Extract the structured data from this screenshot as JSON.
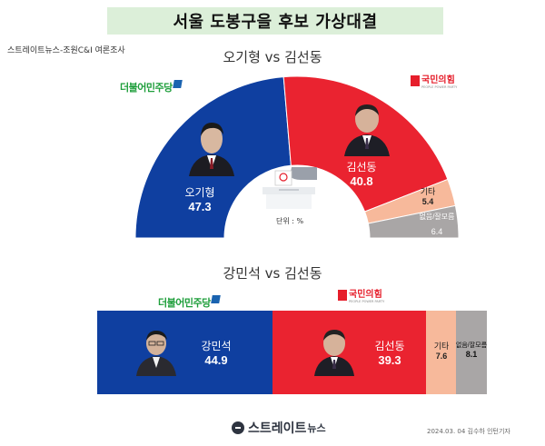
{
  "headline": "서울 도봉구을 후보 가상대결",
  "source": "스트레이트뉴스-조원C&I 여론조사",
  "party_labels": {
    "dem": "더불어민주당",
    "ppp": "국민의힘",
    "ppp_sub": "PEOPLE POWER PARTY"
  },
  "unit": "단위 : %",
  "footer": {
    "logo_main": "스트레이트",
    "logo_sub": "뉴스",
    "credit": "2024.03. 04 김수하 인턴기자"
  },
  "colors": {
    "dem": "#0f3fa0",
    "ppp": "#ea2330",
    "other": "#f7b99b",
    "none": "#a9a6a6",
    "banner": "#dcefd9"
  },
  "chart_data": [
    {
      "type": "pie",
      "title": "오기형 vs 김선동",
      "categories": [
        "오기형",
        "김선동",
        "기타",
        "없음/잘모름"
      ],
      "values": [
        47.3,
        40.8,
        5.4,
        6.4
      ],
      "labels": [
        "47.3",
        "40.8",
        "5.4",
        "6.4"
      ]
    },
    {
      "type": "bar",
      "title": "강민석 vs 김선동",
      "categories": [
        "강민석",
        "김선동",
        "기타",
        "없음/잘모름"
      ],
      "values": [
        44.9,
        39.3,
        7.6,
        8.1
      ],
      "labels": [
        "44.9",
        "39.3",
        "7.6",
        "8.1"
      ]
    }
  ]
}
